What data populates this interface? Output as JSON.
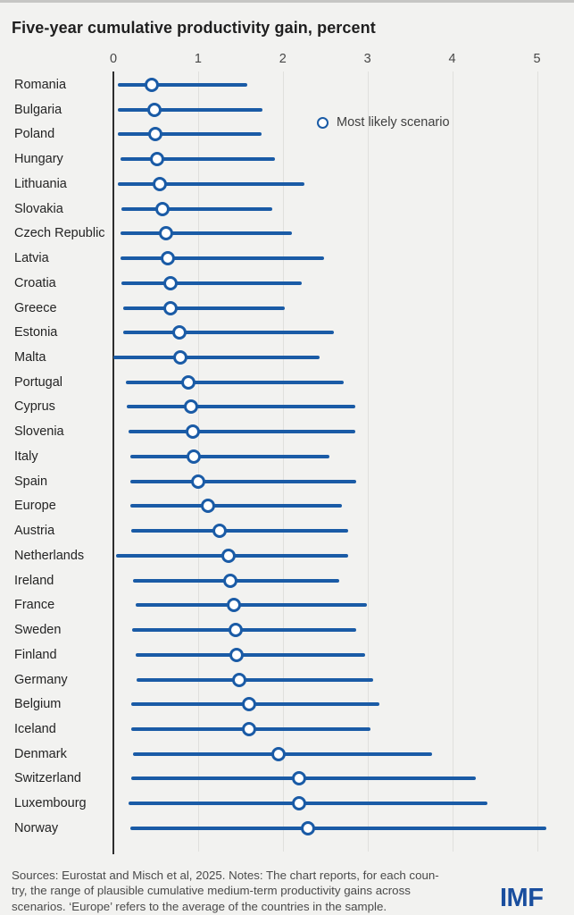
{
  "title": "Five-year cumulative productivity gain, percent",
  "legend": {
    "label": "Most likely scenario",
    "marker": "open-circle"
  },
  "colors": {
    "accent_blue": "#1A5BA6",
    "logo_blue": "#1A4E9E",
    "background": "#F2F2F0",
    "gridline": "#E0E0DD",
    "axis_line": "#2D2D2D"
  },
  "chart_data": {
    "type": "scatter",
    "subtype": "horizontal-range-dot-plot",
    "title": "Five-year cumulative productivity gain, percent",
    "xlabel": "",
    "ylabel": "",
    "xlim": [
      0,
      5.2
    ],
    "x_ticks": [
      0,
      1,
      2,
      3,
      4,
      5
    ],
    "grid": "vertical-on",
    "legend_position": "top-right-inside",
    "legend_entries": [
      "Most likely scenario"
    ],
    "categories": [
      "Romania",
      "Bulgaria",
      "Poland",
      "Hungary",
      "Lithuania",
      "Slovakia",
      "Czech Republic",
      "Latvia",
      "Croatia",
      "Greece",
      "Estonia",
      "Malta",
      "Portugal",
      "Cyprus",
      "Slovenia",
      "Italy",
      "Spain",
      "Europe",
      "Austria",
      "Netherlands",
      "Ireland",
      "France",
      "Sweden",
      "Finland",
      "Germany",
      "Belgium",
      "Iceland",
      "Denmark",
      "Switzerland",
      "Luxembourg",
      "Norway"
    ],
    "series": [
      {
        "name": "range_min",
        "values": [
          0.05,
          0.05,
          0.05,
          0.08,
          0.05,
          0.1,
          0.08,
          0.08,
          0.1,
          0.12,
          0.12,
          0.0,
          0.15,
          0.16,
          0.18,
          0.2,
          0.2,
          0.2,
          0.21,
          0.03,
          0.23,
          0.26,
          0.22,
          0.26,
          0.27,
          0.21,
          0.21,
          0.23,
          0.21,
          0.18,
          0.2
        ]
      },
      {
        "name": "most_likely_scenario",
        "values": [
          0.45,
          0.48,
          0.5,
          0.52,
          0.55,
          0.58,
          0.62,
          0.64,
          0.67,
          0.67,
          0.78,
          0.79,
          0.88,
          0.92,
          0.94,
          0.95,
          1.0,
          1.12,
          1.25,
          1.36,
          1.38,
          1.42,
          1.44,
          1.45,
          1.49,
          1.6,
          1.6,
          1.95,
          2.19,
          2.19,
          2.3
        ]
      },
      {
        "name": "range_max",
        "values": [
          1.58,
          1.76,
          1.75,
          1.91,
          2.25,
          1.88,
          2.11,
          2.49,
          2.22,
          2.02,
          2.6,
          2.43,
          2.72,
          2.86,
          2.86,
          2.55,
          2.87,
          2.7,
          2.77,
          2.77,
          2.67,
          2.99,
          2.87,
          2.97,
          3.07,
          3.14,
          3.03,
          3.76,
          4.28,
          4.42,
          5.11
        ]
      }
    ]
  },
  "footer": {
    "lines": [
      "Sources: Eurostat and Misch et al, 2025. Notes: The chart reports, for each coun-",
      "try, the range of plausible cumulative medium-term productivity gains across",
      "scenarios. ‘Europe’ refers to the average of the countries in the sample."
    ],
    "logo": "IMF"
  }
}
